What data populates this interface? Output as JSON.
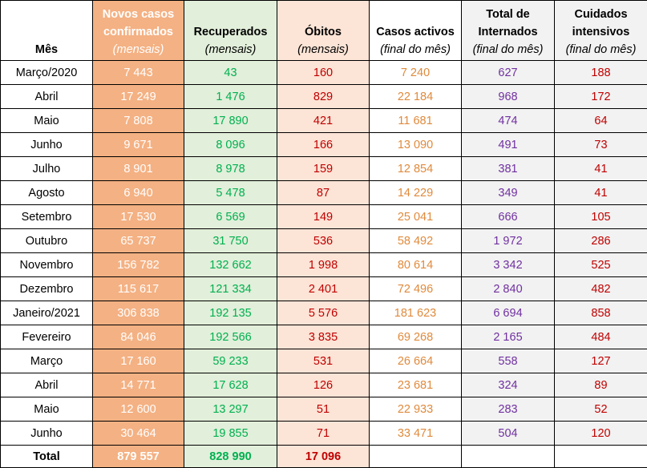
{
  "headers": [
    {
      "title": "Mês",
      "title2": "",
      "sub": ""
    },
    {
      "title": "Novos casos",
      "title2": "confirmados",
      "sub": "(mensais)"
    },
    {
      "title": "Recuperados",
      "title2": "",
      "sub": "(mensais)"
    },
    {
      "title": "Óbitos",
      "title2": "",
      "sub": "(mensais)"
    },
    {
      "title": "Casos activos",
      "title2": "",
      "sub": "(final do mês)"
    },
    {
      "title": "Total de",
      "title2": "Internados",
      "sub": "(final do mês)"
    },
    {
      "title": "Cuidados",
      "title2": "intensivos",
      "sub": "(final do mês)"
    }
  ],
  "rows": [
    [
      "Março/2020",
      "7 443",
      "43",
      "160",
      "7 240",
      "627",
      "188"
    ],
    [
      "Abril",
      "17 249",
      "1 476",
      "829",
      "22 184",
      "968",
      "172"
    ],
    [
      "Maio",
      "7 808",
      "17 890",
      "421",
      "11 681",
      "474",
      "64"
    ],
    [
      "Junho",
      "9 671",
      "8 096",
      "166",
      "13 090",
      "491",
      "73"
    ],
    [
      "Julho",
      "8 901",
      "8 978",
      "159",
      "12 854",
      "381",
      "41"
    ],
    [
      "Agosto",
      "6 940",
      "5 478",
      "87",
      "14 229",
      "349",
      "41"
    ],
    [
      "Setembro",
      "17 530",
      "6 569",
      "149",
      "25 041",
      "666",
      "105"
    ],
    [
      "Outubro",
      "65 737",
      "31 750",
      "536",
      "58 492",
      "1 972",
      "286"
    ],
    [
      "Novembro",
      "156 782",
      "132 662",
      "1 998",
      "80 614",
      "3 342",
      "525"
    ],
    [
      "Dezembro",
      "115 617",
      "121 334",
      "2 401",
      "72 496",
      "2 840",
      "482"
    ],
    [
      "Janeiro/2021",
      "306 838",
      "192 135",
      "5 576",
      "181 623",
      "6 694",
      "858"
    ],
    [
      "Fevereiro",
      "84 046",
      "192 566",
      "3 835",
      "69 268",
      "2 165",
      "484"
    ],
    [
      "Março",
      "17 160",
      "59 233",
      "531",
      "26 664",
      "558",
      "127"
    ],
    [
      "Abril",
      "14 771",
      "17 628",
      "126",
      "23 681",
      "324",
      "89"
    ],
    [
      "Maio",
      "12 600",
      "13 297",
      "51",
      "22 933",
      "283",
      "52"
    ],
    [
      "Junho",
      "30 464",
      "19 855",
      "71",
      "33 471",
      "504",
      "120"
    ]
  ],
  "total": [
    "Total",
    "879 557",
    "828 990",
    "17 096",
    "",
    "",
    ""
  ],
  "colors": {
    "novos_casos_bg": "#f4b183",
    "recuperados_bg": "#e2efda",
    "obitos_bg": "#fce4d6",
    "grey_bg": "#f2f2f2",
    "recuperados_text": "#00b050",
    "obitos_text": "#c00000",
    "activos_text": "#e08a3c",
    "internados_text": "#7030a0"
  }
}
